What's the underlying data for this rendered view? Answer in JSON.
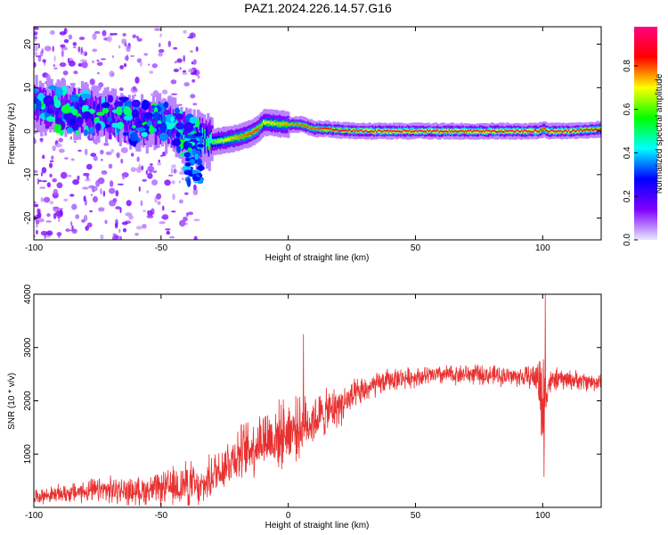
{
  "figure": {
    "title": "PAZ1.2024.226.14.57.G16"
  },
  "chart_data": [
    {
      "type": "heatmap",
      "xlabel": "Height of straight line (km)",
      "ylabel": "Frequency (Hz)",
      "xlim": [
        -100,
        123
      ],
      "ylim": [
        -25,
        24
      ],
      "x_ticks": [
        -100,
        -50,
        0,
        50,
        100
      ],
      "y_ticks": [
        -20,
        -10,
        0,
        10,
        20
      ],
      "grid": false,
      "colorbar": {
        "label": "Normalized spectral amplitude",
        "range": [
          0.0,
          0.98
        ],
        "ticks": [
          0.0,
          0.2,
          0.4,
          0.6,
          0.8
        ],
        "colormap": [
          "#e8e8ff",
          "#8000ff",
          "#0000ff",
          "#00ffff",
          "#00ff00",
          "#ffff00",
          "#ff0000",
          "#ff0080"
        ]
      },
      "ridge": {
        "x": [
          -100,
          -90,
          -80,
          -70,
          -60,
          -55,
          -50,
          -45,
          -40,
          -35,
          -30,
          -25,
          -20,
          -15,
          -12,
          -10,
          0,
          5,
          10,
          15,
          20,
          30,
          50,
          70,
          90,
          98,
          100,
          102,
          110,
          123
        ],
        "y": [
          6,
          5,
          4.5,
          3,
          2,
          1.5,
          2,
          1,
          -1.5,
          -2,
          -2.5,
          -2,
          -1.5,
          -0.5,
          0.5,
          2,
          1.5,
          1.5,
          0.5,
          0.5,
          0.2,
          0,
          0,
          0,
          0,
          0,
          0.5,
          0,
          0,
          0.5
        ],
        "amplitude": [
          0.35,
          0.3,
          0.3,
          0.25,
          0.25,
          0.3,
          0.35,
          0.45,
          0.5,
          0.55,
          0.6,
          0.7,
          0.75,
          0.8,
          0.8,
          0.7,
          0.75,
          0.8,
          0.8,
          0.85,
          0.85,
          0.9,
          0.9,
          0.9,
          0.9,
          0.9,
          0.8,
          0.9,
          0.9,
          0.85
        ]
      },
      "scatter_region": {
        "x": [
          -100,
          -35
        ],
        "y": [
          -25,
          24
        ]
      }
    },
    {
      "type": "line",
      "xlabel": "Height of straight line (km)",
      "ylabel": "SNR (10 * v/v)",
      "xlim": [
        -100,
        123
      ],
      "ylim": [
        0,
        4000
      ],
      "x_ticks": [
        -100,
        -50,
        0,
        50,
        100
      ],
      "y_ticks": [
        1000,
        2000,
        3000,
        4000
      ],
      "grid": false,
      "color": "#e83030",
      "envelope": {
        "x": [
          -100,
          -90,
          -80,
          -70,
          -60,
          -50,
          -45,
          -40,
          -38,
          -35,
          -30,
          -25,
          -20,
          -15,
          -10,
          -5,
          0,
          5,
          10,
          20,
          30,
          40,
          50,
          60,
          70,
          80,
          90,
          95,
          98,
          100,
          102,
          105,
          110,
          120,
          123
        ],
        "mean": [
          200,
          250,
          300,
          320,
          300,
          350,
          380,
          450,
          450,
          300,
          600,
          800,
          1000,
          1100,
          1300,
          1300,
          1450,
          1500,
          1650,
          1900,
          2200,
          2400,
          2450,
          2480,
          2500,
          2480,
          2450,
          2450,
          2450,
          2000,
          2300,
          2400,
          2400,
          2350,
          2350
        ],
        "spread": [
          150,
          200,
          250,
          300,
          300,
          350,
          450,
          500,
          500,
          400,
          500,
          550,
          600,
          650,
          700,
          750,
          700,
          650,
          550,
          450,
          300,
          250,
          220,
          220,
          220,
          220,
          220,
          250,
          400,
          1500,
          300,
          250,
          220,
          200,
          200
        ]
      },
      "peaks": [
        {
          "x": 6,
          "y": 3250
        },
        {
          "x": 101,
          "y": 4000
        },
        {
          "x": 100.5,
          "y": 570
        }
      ]
    }
  ]
}
